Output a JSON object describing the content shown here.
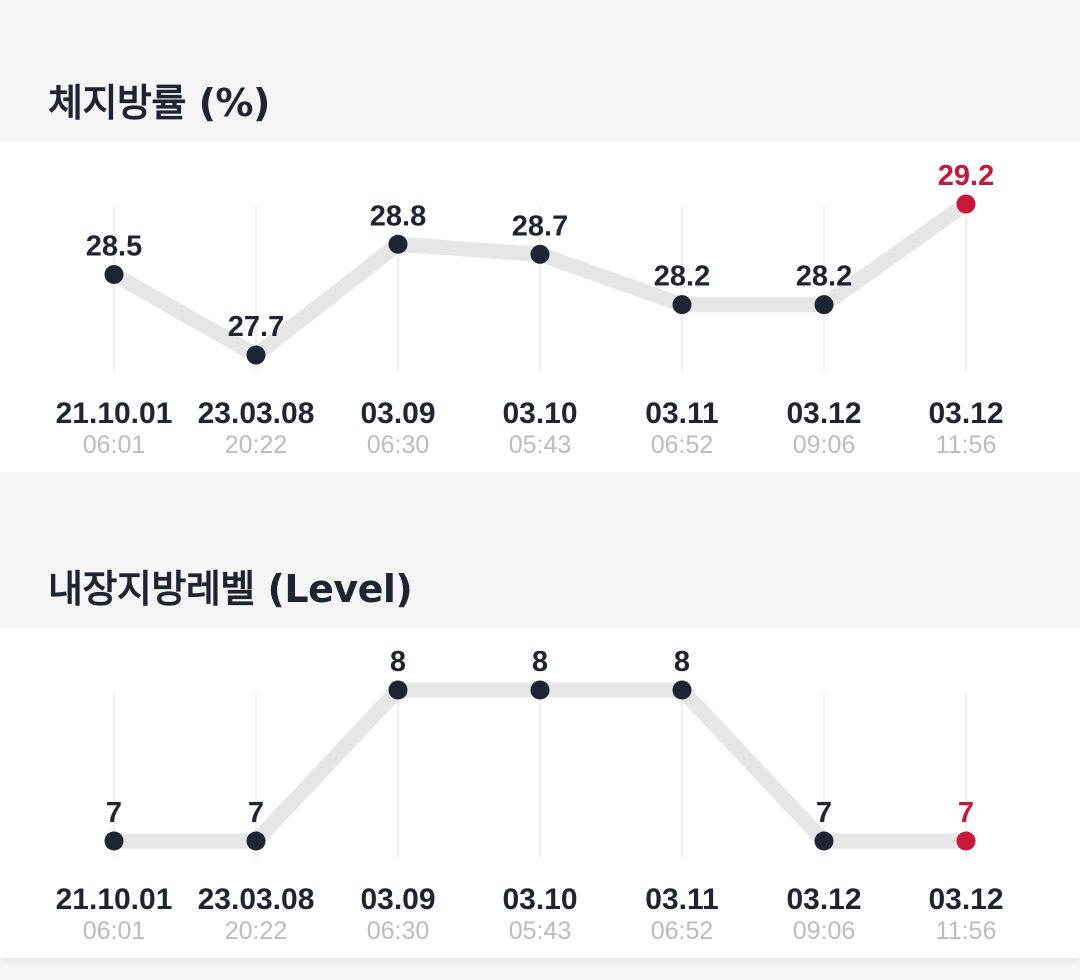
{
  "sections": [
    {
      "title": "체지방률 (%)",
      "chart_data": {
        "type": "line",
        "title": "체지방률 (%)",
        "categories": [
          {
            "date": "21.10.01",
            "time": "06:01"
          },
          {
            "date": "23.03.08",
            "time": "20:22"
          },
          {
            "date": "03.09",
            "time": "06:30"
          },
          {
            "date": "03.10",
            "time": "05:43"
          },
          {
            "date": "03.11",
            "time": "06:52"
          },
          {
            "date": "03.12",
            "time": "09:06"
          },
          {
            "date": "03.12",
            "time": "11:56"
          }
        ],
        "values": [
          "28.5",
          "27.7",
          "28.8",
          "28.7",
          "28.2",
          "28.2",
          "29.2"
        ],
        "ylim": [
          27.7,
          29.2
        ],
        "highlight_last": true,
        "grid": "vertical"
      }
    },
    {
      "title": "내장지방레벨 (Level)",
      "chart_data": {
        "type": "line",
        "title": "내장지방레벨 (Level)",
        "categories": [
          {
            "date": "21.10.01",
            "time": "06:01"
          },
          {
            "date": "23.03.08",
            "time": "20:22"
          },
          {
            "date": "03.09",
            "time": "06:30"
          },
          {
            "date": "03.10",
            "time": "05:43"
          },
          {
            "date": "03.11",
            "time": "06:52"
          },
          {
            "date": "03.12",
            "time": "09:06"
          },
          {
            "date": "03.12",
            "time": "11:56"
          }
        ],
        "values": [
          "7",
          "7",
          "8",
          "8",
          "8",
          "7",
          "7"
        ],
        "ylim": [
          7,
          8
        ],
        "highlight_last": true,
        "grid": "vertical"
      }
    }
  ],
  "colors": {
    "point": "#1f2433",
    "highlight": "#c8173a",
    "line": "#e6e6e6",
    "grid": "#ececec",
    "date_text": "#1f2433",
    "time_text": "#b9bcc2"
  }
}
